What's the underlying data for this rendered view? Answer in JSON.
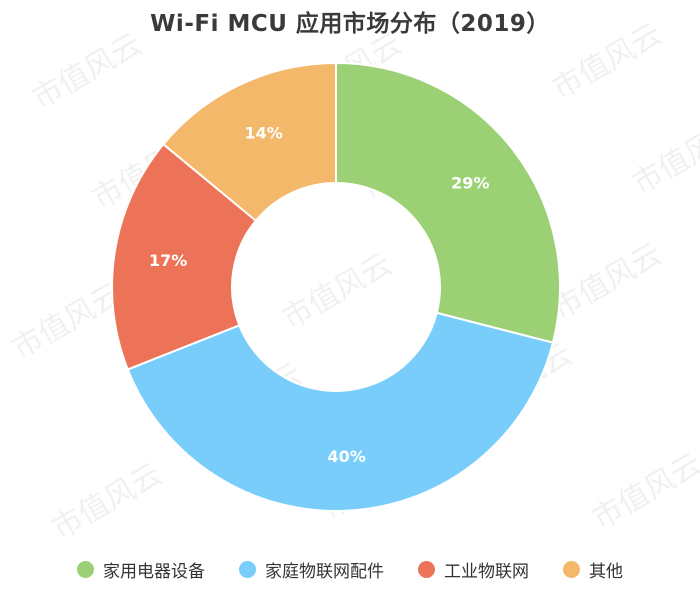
{
  "title": "Wi-Fi MCU 应用市场分布（2019）",
  "watermark_text": "市值风云",
  "chart_data": {
    "type": "pie",
    "title": "Wi-Fi MCU 应用市场分布（2019）",
    "donut": true,
    "start_angle_deg": 0,
    "direction": "clockwise",
    "slices": [
      {
        "name": "家用电器设备",
        "value": 29,
        "label": "29%",
        "color": "#9bd174"
      },
      {
        "name": "家庭物联网配件",
        "value": 40,
        "label": "40%",
        "color": "#79cdfb"
      },
      {
        "name": "工业物联网",
        "value": 17,
        "label": "17%",
        "color": "#ec7358"
      },
      {
        "name": "其他",
        "value": 14,
        "label": "14%",
        "color": "#f4b86b"
      }
    ],
    "legend_position": "bottom"
  }
}
